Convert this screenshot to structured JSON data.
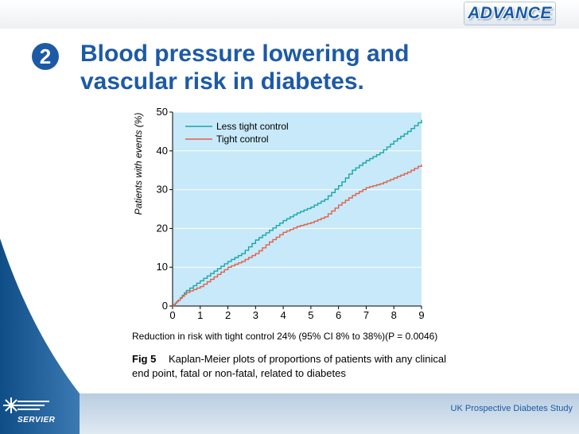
{
  "slide": {
    "number": "2",
    "title_line1": "Blood pressure lowering and",
    "title_line2": "vascular risk in diabetes.",
    "logo": "ADVANCE",
    "company": "SERVIER",
    "footer": "UK Prospective Diabetes Study"
  },
  "colors": {
    "title": "#1d5aa6",
    "plot_bg": "#c7e9f9",
    "less_tight": "#1aa6a6",
    "tight": "#e0604a"
  },
  "chart_data": {
    "type": "line",
    "ylabel": "Patients with events (%)",
    "xlabel": "",
    "xlim": [
      0,
      9
    ],
    "ylim": [
      0,
      50
    ],
    "x_ticks": [
      0,
      1,
      2,
      3,
      4,
      5,
      6,
      7,
      8,
      9
    ],
    "y_ticks": [
      0,
      10,
      20,
      30,
      40,
      50
    ],
    "legend_position": "top-left",
    "series": [
      {
        "name": "Less tight control",
        "color": "#1aa6a6",
        "x": [
          0,
          0.2,
          0.5,
          1,
          1.5,
          2,
          2.5,
          3,
          3.5,
          4,
          4.5,
          5,
          5.5,
          6,
          6.5,
          7,
          7.5,
          8,
          8.5,
          9
        ],
        "y": [
          0,
          1.5,
          4,
          6.5,
          9,
          11.5,
          13.5,
          17,
          19.5,
          22,
          24,
          25.5,
          27.5,
          31,
          35,
          37.5,
          39.5,
          42.5,
          45,
          48
        ]
      },
      {
        "name": "Tight control",
        "color": "#e0604a",
        "x": [
          0,
          0.2,
          0.5,
          1,
          1.5,
          2,
          2.5,
          3,
          3.5,
          4,
          4.5,
          5,
          5.5,
          6,
          6.5,
          7,
          7.5,
          8,
          8.5,
          9
        ],
        "y": [
          0,
          1.5,
          3.5,
          5,
          7.5,
          10,
          11.5,
          13.5,
          16.5,
          19,
          20.5,
          21.5,
          23,
          26,
          28.5,
          30.5,
          31.5,
          33,
          34.5,
          36.5
        ]
      }
    ],
    "annotation": "Reduction in risk with tight control 24% (95% CI 8% to 38%)(P = 0.0046)",
    "caption_label": "Fig 5",
    "caption_line1": "Kaplan-Meier plots of proportions of patients with any clinical",
    "caption_line2": "end point, fatal or non-fatal, related to diabetes"
  }
}
